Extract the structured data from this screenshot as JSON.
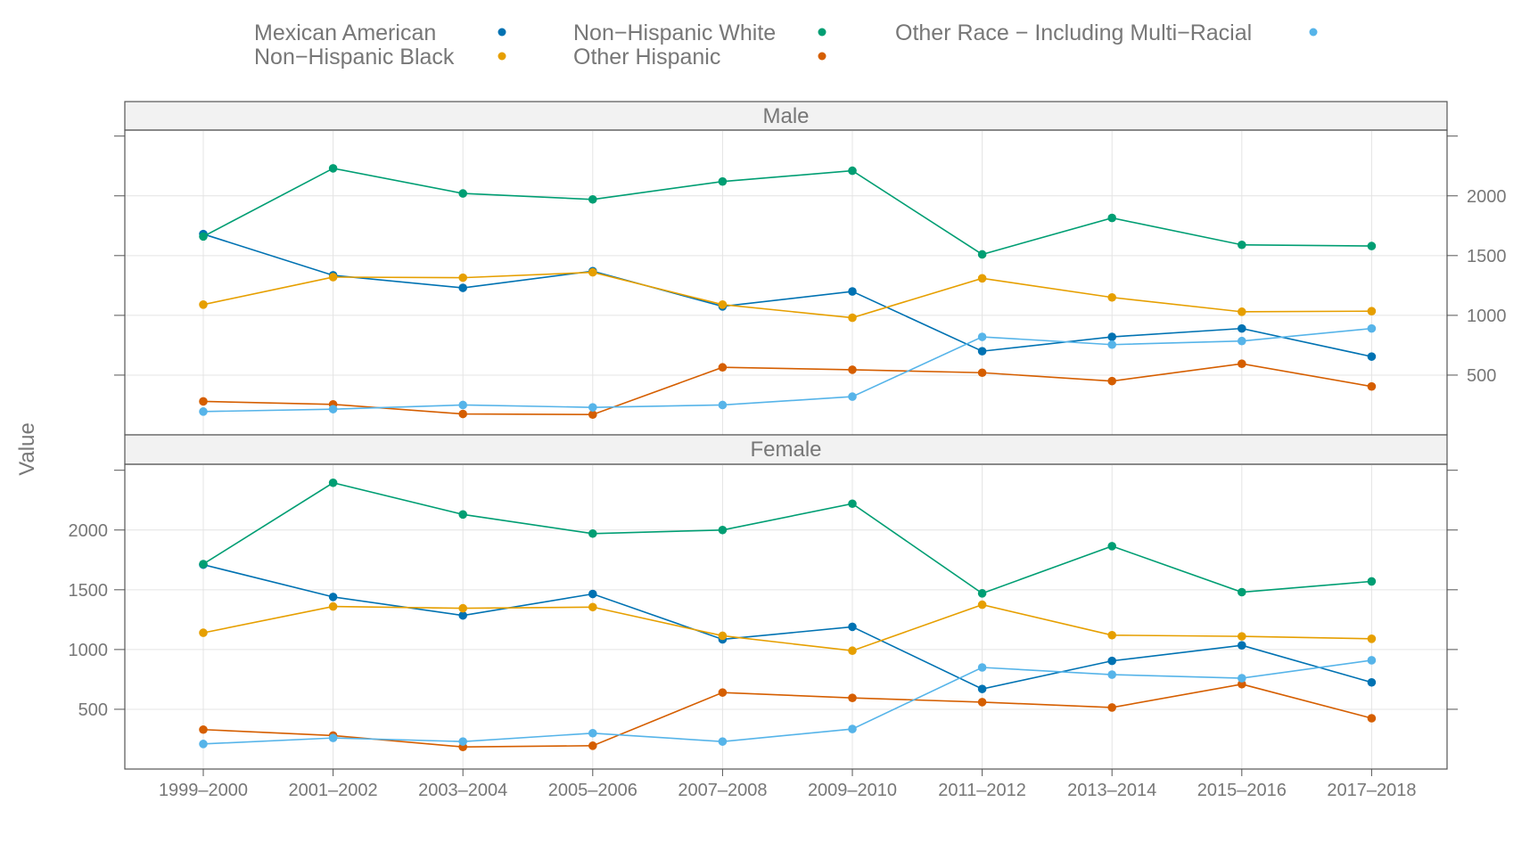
{
  "chart_data": {
    "type": "line",
    "ylabel": "Value",
    "xlabel": "",
    "ylim": [
      0,
      2550
    ],
    "yticks": [
      500,
      1000,
      1500,
      2000
    ],
    "categories": [
      "1999–2000",
      "2001–2002",
      "2003–2004",
      "2005–2006",
      "2007–2008",
      "2009–2010",
      "2011–2012",
      "2013–2014",
      "2015–2016",
      "2017–2018"
    ],
    "legend": {
      "position": "top",
      "entries": [
        {
          "name": "Mexican American",
          "color": "#0072B2"
        },
        {
          "name": "Non−Hispanic Black",
          "color": "#E69F00"
        },
        {
          "name": "Non−Hispanic White",
          "color": "#009E73"
        },
        {
          "name": "Other Hispanic",
          "color": "#D55E00"
        },
        {
          "name": "Other Race − Including Multi−Racial",
          "color": "#56B4E9"
        }
      ]
    },
    "panels": [
      {
        "strip": "Male",
        "series": [
          {
            "name": "Mexican American",
            "color": "#0072B2",
            "values": [
              1680,
              1335,
              1230,
              1370,
              1075,
              1200,
              700,
              820,
              890,
              655
            ]
          },
          {
            "name": "Non−Hispanic Black",
            "color": "#E69F00",
            "values": [
              1090,
              1320,
              1315,
              1360,
              1090,
              980,
              1310,
              1150,
              1030,
              1035
            ]
          },
          {
            "name": "Non−Hispanic White",
            "color": "#009E73",
            "values": [
              1660,
              2230,
              2020,
              1970,
              2120,
              2210,
              1510,
              1815,
              1590,
              1580
            ]
          },
          {
            "name": "Other Hispanic",
            "color": "#D55E00",
            "values": [
              280,
              255,
              175,
              170,
              565,
              545,
              520,
              450,
              595,
              405
            ]
          },
          {
            "name": "Other Race − Including Multi−Racial",
            "color": "#56B4E9",
            "values": [
              195,
              215,
              250,
              230,
              250,
              320,
              820,
              755,
              785,
              890
            ]
          }
        ]
      },
      {
        "strip": "Female",
        "series": [
          {
            "name": "Mexican American",
            "color": "#0072B2",
            "values": [
              1710,
              1440,
              1285,
              1465,
              1085,
              1190,
              670,
              905,
              1035,
              725
            ]
          },
          {
            "name": "Non−Hispanic Black",
            "color": "#E69F00",
            "values": [
              1140,
              1360,
              1345,
              1355,
              1115,
              990,
              1375,
              1120,
              1110,
              1090
            ]
          },
          {
            "name": "Non−Hispanic White",
            "color": "#009E73",
            "values": [
              1715,
              2395,
              2130,
              1970,
              2000,
              2220,
              1470,
              1865,
              1480,
              1570
            ]
          },
          {
            "name": "Other Hispanic",
            "color": "#D55E00",
            "values": [
              330,
              280,
              185,
              195,
              640,
              595,
              560,
              515,
              710,
              425
            ]
          },
          {
            "name": "Other Race − Including Multi−Racial",
            "color": "#56B4E9",
            "values": [
              210,
              260,
              230,
              300,
              230,
              335,
              850,
              790,
              760,
              910
            ]
          }
        ]
      }
    ]
  }
}
